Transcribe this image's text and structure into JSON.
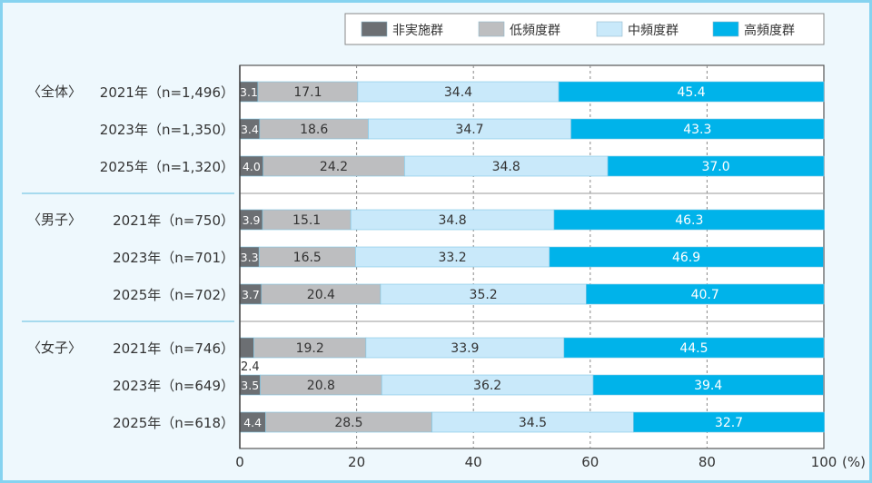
{
  "chart_data": {
    "type": "bar",
    "orientation": "horizontal",
    "stacked": true,
    "unit_label": "(%)",
    "xlim": [
      0,
      100
    ],
    "xticks": [
      0,
      20,
      40,
      60,
      80,
      100
    ],
    "grid": "vertical dashed",
    "legend_position": "top-right",
    "series": [
      {
        "name": "非実施群",
        "color": "#6c6f73",
        "label_color": "#ffffff"
      },
      {
        "name": "低頻度群",
        "color": "#bdbec0",
        "label_color": "#333333"
      },
      {
        "name": "中頻度群",
        "color": "#c9e9fa",
        "label_color": "#333333"
      },
      {
        "name": "高頻度群",
        "color": "#00b3ea",
        "label_color": "#ffffff"
      }
    ],
    "groups": [
      {
        "label": "〈全体〉",
        "rows": [
          {
            "label": "2021年（n=1,496）",
            "values": [
              3.1,
              17.1,
              34.4,
              45.4
            ]
          },
          {
            "label": "2023年（n=1,350）",
            "values": [
              3.4,
              18.6,
              34.7,
              43.3
            ]
          },
          {
            "label": "2025年（n=1,320）",
            "values": [
              4.0,
              24.2,
              34.8,
              37.0
            ]
          }
        ]
      },
      {
        "label": "〈男子〉",
        "rows": [
          {
            "label": "2021年（n=750）",
            "values": [
              3.9,
              15.1,
              34.8,
              46.3
            ]
          },
          {
            "label": "2023年（n=701）",
            "values": [
              3.3,
              16.5,
              33.2,
              46.9
            ]
          },
          {
            "label": "2025年（n=702）",
            "values": [
              3.7,
              20.4,
              35.2,
              40.7
            ]
          }
        ]
      },
      {
        "label": "〈女子〉",
        "rows": [
          {
            "label": "2021年（n=746）",
            "values": [
              2.4,
              19.2,
              33.9,
              44.5
            ]
          },
          {
            "label": "2023年（n=649）",
            "values": [
              3.5,
              20.8,
              36.2,
              39.4
            ]
          },
          {
            "label": "2025年（n=618）",
            "values": [
              4.4,
              28.5,
              34.5,
              32.7
            ]
          }
        ]
      }
    ]
  }
}
